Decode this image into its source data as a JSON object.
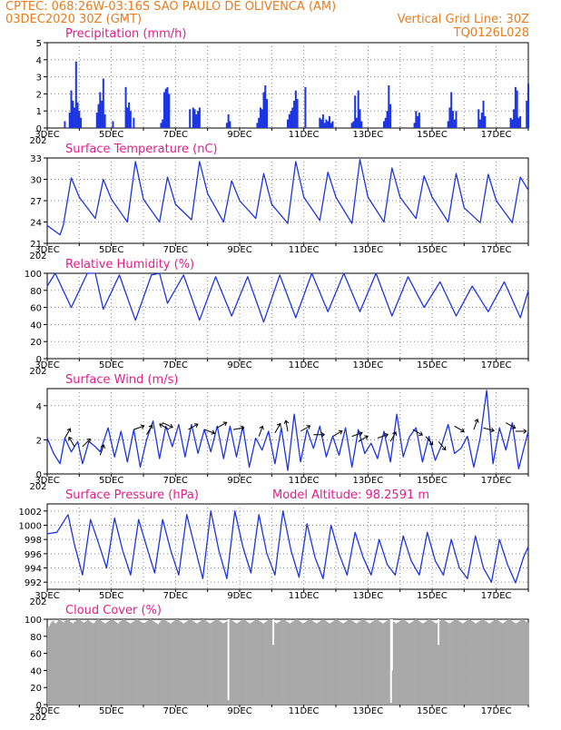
{
  "header": {
    "line1": "CPTEC:   068:26W-03:16S   SAO PAULO DE OLIVENCA (AM)",
    "line2": "03DEC2020 30Z (GMT)",
    "grid_line": "Vertical Grid Line: 30Z",
    "model": "TQ0126L028"
  },
  "colors": {
    "header": "#e87c1e",
    "title": "#e0208a",
    "series": "#1c35e0",
    "cloud": "#a8a8a8",
    "grid": "#888888"
  },
  "x_axis": {
    "labels": [
      "3DEC",
      "5DEC",
      "7DEC",
      "9DEC",
      "11DEC",
      "13DEC",
      "15DEC",
      "17DEC"
    ],
    "sub_label": "202"
  },
  "chart_data": [
    {
      "type": "bar",
      "title": "Precipitation (mm/h)",
      "ylim": [
        0,
        5
      ],
      "yticks": [
        "0",
        "1",
        "2",
        "3",
        "4",
        "5"
      ],
      "x": [
        3.55,
        3.7,
        3.75,
        3.8,
        3.85,
        3.9,
        3.95,
        4.0,
        4.05,
        4.55,
        4.6,
        4.65,
        4.7,
        4.75,
        4.8,
        5.05,
        5.45,
        5.5,
        5.55,
        5.6,
        5.7,
        6.55,
        6.6,
        6.65,
        6.7,
        6.75,
        6.8,
        7.45,
        7.55,
        7.6,
        7.65,
        7.7,
        7.75,
        8.6,
        8.65,
        8.7,
        9.55,
        9.6,
        9.65,
        9.7,
        9.75,
        9.8,
        9.85,
        10.5,
        10.55,
        10.6,
        10.65,
        10.7,
        10.75,
        10.8,
        11.05,
        11.5,
        11.55,
        11.6,
        11.65,
        11.7,
        11.75,
        11.8,
        11.85,
        11.9,
        12.5,
        12.55,
        12.6,
        12.65,
        12.7,
        12.75,
        12.8,
        13.5,
        13.55,
        13.6,
        13.65,
        13.7,
        14.45,
        14.5,
        14.55,
        14.6,
        15.5,
        15.55,
        15.6,
        15.65,
        15.7,
        15.75,
        16.45,
        16.5,
        16.55,
        16.6,
        16.65,
        17.45,
        17.5,
        17.55,
        17.6,
        17.65,
        17.7,
        17.75,
        17.95,
        18.0
      ],
      "values": [
        0.4,
        0.9,
        2.2,
        1.6,
        1.2,
        3.9,
        1.5,
        1.0,
        0.6,
        0.9,
        1.4,
        2.1,
        1.6,
        2.9,
        0.8,
        0.4,
        2.4,
        1.2,
        1.5,
        1.0,
        0.6,
        0.3,
        0.5,
        2.1,
        2.3,
        2.4,
        2.0,
        1.1,
        1.2,
        1.1,
        0.8,
        1.0,
        1.2,
        0.3,
        0.8,
        0.4,
        0.3,
        0.6,
        1.2,
        1.1,
        2.1,
        2.5,
        1.7,
        0.5,
        0.8,
        1.0,
        1.2,
        1.6,
        2.2,
        1.7,
        2.4,
        0.6,
        0.5,
        0.8,
        0.3,
        0.5,
        0.4,
        0.7,
        0.3,
        0.4,
        0.3,
        0.4,
        1.9,
        0.6,
        2.2,
        1.1,
        0.4,
        0.4,
        0.6,
        1.0,
        2.5,
        1.4,
        0.3,
        1.0,
        0.7,
        0.9,
        0.4,
        1.2,
        2.1,
        1.0,
        0.5,
        1.0,
        1.1,
        0.5,
        0.9,
        1.6,
        0.7,
        0.6,
        0.5,
        1.1,
        2.4,
        2.2,
        0.6,
        0.7,
        1.6,
        2.6
      ]
    },
    {
      "type": "line",
      "title": "Surface Temperature (nC)",
      "ylim": [
        21,
        33
      ],
      "yticks": [
        "21",
        "24",
        "27",
        "30",
        "33"
      ],
      "x": [
        3.0,
        3.4,
        3.5,
        3.75,
        4.0,
        4.5,
        4.75,
        5.0,
        5.5,
        5.75,
        6.0,
        6.5,
        6.75,
        7.0,
        7.5,
        7.75,
        8.0,
        8.5,
        8.75,
        9.0,
        9.5,
        9.75,
        10.0,
        10.5,
        10.75,
        11.0,
        11.5,
        11.75,
        12.0,
        12.5,
        12.75,
        13.0,
        13.5,
        13.75,
        14.0,
        14.5,
        14.75,
        15.0,
        15.5,
        15.75,
        16.0,
        16.5,
        16.75,
        17.0,
        17.5,
        17.75,
        18.0
      ],
      "values": [
        23.5,
        22.2,
        23.5,
        30.2,
        27.5,
        24.5,
        30.0,
        27.2,
        24.0,
        32.5,
        27.2,
        24.0,
        30.3,
        26.5,
        24.3,
        32.5,
        28.0,
        24.0,
        29.8,
        27.0,
        24.5,
        30.8,
        26.5,
        23.8,
        32.5,
        27.5,
        24.2,
        31.0,
        27.5,
        23.8,
        32.8,
        27.5,
        24.0,
        31.6,
        27.5,
        24.5,
        30.5,
        27.5,
        24.0,
        30.8,
        26.0,
        23.9,
        30.7,
        27.0,
        23.9,
        30.3,
        28.5
      ]
    },
    {
      "type": "line",
      "title": "Relative Humidity (%)",
      "ylim": [
        0,
        100
      ],
      "yticks": [
        "0",
        "20",
        "40",
        "60",
        "80",
        "100"
      ],
      "x": [
        3.0,
        3.25,
        3.75,
        4.25,
        4.5,
        4.75,
        5.25,
        5.75,
        6.25,
        6.5,
        6.75,
        7.25,
        7.75,
        8.25,
        8.75,
        9.25,
        9.75,
        10.25,
        10.75,
        11.25,
        11.75,
        12.25,
        12.75,
        13.25,
        13.75,
        14.25,
        14.75,
        15.25,
        15.75,
        16.25,
        16.75,
        17.25,
        17.75,
        18.0
      ],
      "values": [
        85,
        100,
        60,
        100,
        100,
        58,
        98,
        45,
        98,
        100,
        65,
        98,
        45,
        96,
        50,
        96,
        43,
        98,
        48,
        100,
        55,
        100,
        55,
        100,
        50,
        96,
        60,
        90,
        50,
        85,
        55,
        90,
        48,
        80
      ]
    },
    {
      "type": "line",
      "title": "Surface Wind (m/s)",
      "ylim": [
        0,
        5
      ],
      "yticks": [
        "0",
        "2",
        "4"
      ],
      "x": [
        3.0,
        3.2,
        3.4,
        3.55,
        3.75,
        3.95,
        4.1,
        4.3,
        4.5,
        4.65,
        4.9,
        5.1,
        5.3,
        5.5,
        5.7,
        5.9,
        6.1,
        6.3,
        6.5,
        6.7,
        6.9,
        7.1,
        7.3,
        7.5,
        7.7,
        7.9,
        8.1,
        8.3,
        8.5,
        8.7,
        8.9,
        9.1,
        9.3,
        9.5,
        9.7,
        9.9,
        10.1,
        10.3,
        10.5,
        10.7,
        10.9,
        11.1,
        11.3,
        11.5,
        11.7,
        11.9,
        12.1,
        12.3,
        12.5,
        12.7,
        12.9,
        13.1,
        13.3,
        13.5,
        13.7,
        13.9,
        14.1,
        14.3,
        14.5,
        14.7,
        14.9,
        15.1,
        15.3,
        15.5,
        15.7,
        15.9,
        16.1,
        16.3,
        16.5,
        16.7,
        16.9,
        17.1,
        17.3,
        17.5,
        17.7,
        17.9,
        18.0
      ],
      "values": [
        2.1,
        1.2,
        0.6,
        2.1,
        1.3,
        1.9,
        0.6,
        1.9,
        1.6,
        1.3,
        2.7,
        1.0,
        2.5,
        0.7,
        2.6,
        0.4,
        2.0,
        3.1,
        0.9,
        2.8,
        1.6,
        2.9,
        1.0,
        2.9,
        1.2,
        2.6,
        1.3,
        2.8,
        0.9,
        2.8,
        1.0,
        2.8,
        0.4,
        2.1,
        1.4,
        2.5,
        0.6,
        2.7,
        0.2,
        3.5,
        0.7,
        2.6,
        1.5,
        2.8,
        1.0,
        2.2,
        1.1,
        2.7,
        0.4,
        2.6,
        1.2,
        1.8,
        0.9,
        2.5,
        0.7,
        3.5,
        1.0,
        2.2,
        2.7,
        0.7,
        2.2,
        0.8,
        1.7,
        2.9,
        1.2,
        1.5,
        2.2,
        0.4,
        2.1,
        4.9,
        0.6,
        2.7,
        1.4,
        3.0,
        0.3,
        1.8,
        2.5
      ],
      "arrows": [
        {
          "x": 3.55,
          "y": 2.1,
          "dir": -60
        },
        {
          "x": 3.85,
          "y": 1.6,
          "dir": -120
        },
        {
          "x": 4.1,
          "y": 1.6,
          "dir": -45
        },
        {
          "x": 4.65,
          "y": 1.1,
          "dir": -70
        },
        {
          "x": 5.7,
          "y": 2.6,
          "dir": -20
        },
        {
          "x": 6.1,
          "y": 2.3,
          "dir": -60
        },
        {
          "x": 6.6,
          "y": 3.0,
          "dir": 25
        },
        {
          "x": 6.8,
          "y": 2.6,
          "dir": -150
        },
        {
          "x": 7.4,
          "y": 2.6,
          "dir": -30
        },
        {
          "x": 7.9,
          "y": 2.6,
          "dir": 20
        },
        {
          "x": 8.3,
          "y": 2.7,
          "dir": -30
        },
        {
          "x": 8.8,
          "y": 2.6,
          "dir": -10
        },
        {
          "x": 9.6,
          "y": 2.2,
          "dir": -70
        },
        {
          "x": 10.1,
          "y": 2.4,
          "dir": -60
        },
        {
          "x": 10.5,
          "y": 2.5,
          "dir": -100
        },
        {
          "x": 10.9,
          "y": 2.5,
          "dir": -30
        },
        {
          "x": 11.3,
          "y": 2.3,
          "dir": 0
        },
        {
          "x": 11.9,
          "y": 2.2,
          "dir": -30
        },
        {
          "x": 12.5,
          "y": 2.2,
          "dir": -20
        },
        {
          "x": 12.7,
          "y": 1.9,
          "dir": -30
        },
        {
          "x": 13.3,
          "y": 2.1,
          "dir": -20
        },
        {
          "x": 13.7,
          "y": 1.9,
          "dir": -60
        },
        {
          "x": 14.4,
          "y": 2.6,
          "dir": 30
        },
        {
          "x": 14.8,
          "y": 2.2,
          "dir": 50
        },
        {
          "x": 15.2,
          "y": 1.9,
          "dir": 50
        },
        {
          "x": 15.7,
          "y": 2.8,
          "dir": 30
        },
        {
          "x": 16.3,
          "y": 2.6,
          "dir": -70
        },
        {
          "x": 16.6,
          "y": 2.7,
          "dir": 15
        },
        {
          "x": 17.6,
          "y": 2.5,
          "dir": 0
        },
        {
          "x": 17.3,
          "y": 3.0,
          "dir": 30
        }
      ]
    },
    {
      "type": "line",
      "title": "Surface Pressure (hPa)",
      "subtitle": "Model Altitude: 98.2591 m",
      "ylim": [
        991,
        1003
      ],
      "yticks": [
        "992",
        "994",
        "996",
        "998",
        "1000",
        "1002"
      ],
      "x": [
        3.0,
        3.3,
        3.65,
        3.85,
        4.1,
        4.35,
        4.6,
        4.85,
        5.1,
        5.35,
        5.6,
        5.85,
        6.1,
        6.35,
        6.6,
        6.85,
        7.1,
        7.35,
        7.6,
        7.85,
        8.1,
        8.35,
        8.6,
        8.85,
        9.1,
        9.35,
        9.6,
        9.85,
        10.1,
        10.35,
        10.6,
        10.85,
        11.1,
        11.35,
        11.6,
        11.85,
        12.1,
        12.35,
        12.6,
        12.85,
        13.1,
        13.35,
        13.6,
        13.85,
        14.1,
        14.35,
        14.6,
        14.85,
        15.1,
        15.35,
        15.6,
        15.85,
        16.1,
        16.35,
        16.6,
        16.85,
        17.1,
        17.35,
        17.6,
        17.85,
        18.0
      ],
      "values": [
        998.8,
        999.0,
        1001.5,
        997.3,
        993.0,
        1000.8,
        997.5,
        994.0,
        1001.0,
        996.5,
        993.0,
        1000.8,
        997.0,
        993.3,
        1000.8,
        996.5,
        993.0,
        1001.5,
        997.0,
        992.5,
        1002.0,
        996.5,
        992.5,
        1002.0,
        997.0,
        993.3,
        1001.5,
        996.0,
        993.0,
        1002.0,
        996.5,
        992.7,
        1000.2,
        995.5,
        992.5,
        1000.0,
        996.0,
        993.0,
        999.0,
        995.5,
        993.0,
        998.0,
        994.5,
        993.0,
        998.5,
        995.0,
        993.0,
        999.0,
        995.0,
        993.0,
        998.0,
        994.0,
        992.5,
        998.5,
        994.0,
        992.0,
        998.0,
        994.5,
        991.9,
        995.5,
        997.0
      ]
    },
    {
      "type": "bar",
      "title": "Cloud Cover (%)",
      "ylim": [
        0,
        100
      ],
      "yticks": [
        "0",
        "20",
        "40",
        "60",
        "80",
        "100"
      ],
      "notes": [
        "100",
        "95",
        "97"
      ],
      "values": [
        90,
        92,
        95,
        97,
        98,
        96,
        95,
        97,
        99,
        100,
        98,
        97,
        96,
        98,
        99,
        100,
        99,
        97,
        96,
        95,
        97,
        98,
        99,
        100,
        99,
        98,
        97,
        96,
        97,
        98,
        99,
        98,
        97,
        96,
        95,
        96,
        98,
        99,
        100,
        99,
        98,
        97,
        96,
        95,
        96,
        97,
        98,
        99,
        100,
        99,
        98,
        97,
        96,
        95,
        97,
        98,
        99,
        100,
        99,
        98,
        97,
        96,
        95,
        96,
        97,
        98,
        99,
        100,
        99,
        98,
        97,
        96,
        95,
        96,
        97,
        98,
        99,
        100,
        99,
        98,
        97,
        96,
        95,
        94,
        96,
        98,
        99,
        100,
        99,
        98,
        97,
        96,
        95,
        96,
        97,
        98,
        99,
        100,
        99,
        98,
        97,
        96,
        95,
        96,
        97,
        98,
        99,
        100,
        99,
        98,
        97,
        96,
        95,
        96,
        97,
        98,
        99,
        100,
        99,
        98,
        97,
        96,
        95,
        96,
        97,
        98,
        99,
        100,
        99,
        98,
        97,
        96,
        95,
        96,
        97,
        98,
        99,
        100,
        99,
        98,
        97,
        96,
        95,
        96,
        97,
        98,
        99,
        100,
        99,
        98,
        97,
        96,
        95,
        96,
        97,
        98,
        99,
        100,
        99,
        98,
        97,
        96,
        95,
        96,
        97,
        98,
        99,
        100,
        99,
        98,
        97,
        96,
        95,
        96,
        97,
        98,
        99,
        100,
        99,
        98,
        97,
        96,
        95,
        96,
        97,
        98,
        99,
        100,
        99,
        98,
        97,
        96,
        95,
        96,
        97,
        98,
        99,
        100,
        99,
        98,
        97,
        96,
        95,
        96,
        97,
        98,
        99,
        100,
        99,
        98,
        97,
        96,
        95,
        96,
        97,
        98,
        99,
        100,
        99,
        98,
        97,
        96,
        95,
        96,
        97,
        98,
        99,
        100,
        99,
        98,
        97,
        96,
        95,
        96,
        97,
        98,
        99,
        100,
        99,
        98,
        97,
        96,
        95,
        96,
        97,
        98,
        99,
        100,
        99,
        98,
        97,
        96,
        95,
        96,
        97,
        98,
        99,
        100,
        99,
        98,
        97,
        96,
        95,
        96,
        97,
        98,
        99,
        100,
        99,
        98,
        97,
        96,
        95,
        96,
        97,
        98,
        99,
        100,
        99,
        98,
        97,
        96,
        95,
        96,
        97,
        98,
        99,
        100,
        99,
        98,
        97,
        96,
        95,
        96,
        97,
        98,
        99,
        100,
        99,
        98,
        97,
        96,
        95,
        96,
        97,
        98,
        99,
        100,
        99,
        98,
        97,
        96,
        95,
        96,
        97,
        98,
        99,
        100,
        99,
        98,
        97,
        96,
        95,
        96,
        97,
        98,
        99,
        100,
        99,
        98,
        97,
        96,
        95,
        96,
        97,
        98,
        99,
        100,
        99,
        98,
        97,
        96,
        95,
        96,
        97,
        98,
        99,
        100,
        99,
        98,
        97,
        96,
        95,
        96,
        97,
        98,
        99,
        100,
        99,
        98,
        97,
        96
      ],
      "dips": [
        {
          "x": 8.65,
          "value": 5
        },
        {
          "x": 13.72,
          "value": 2
        },
        {
          "x": 13.75,
          "value": 40
        },
        {
          "x": 10.05,
          "value": 70
        },
        {
          "x": 15.2,
          "value": 70
        }
      ]
    }
  ]
}
